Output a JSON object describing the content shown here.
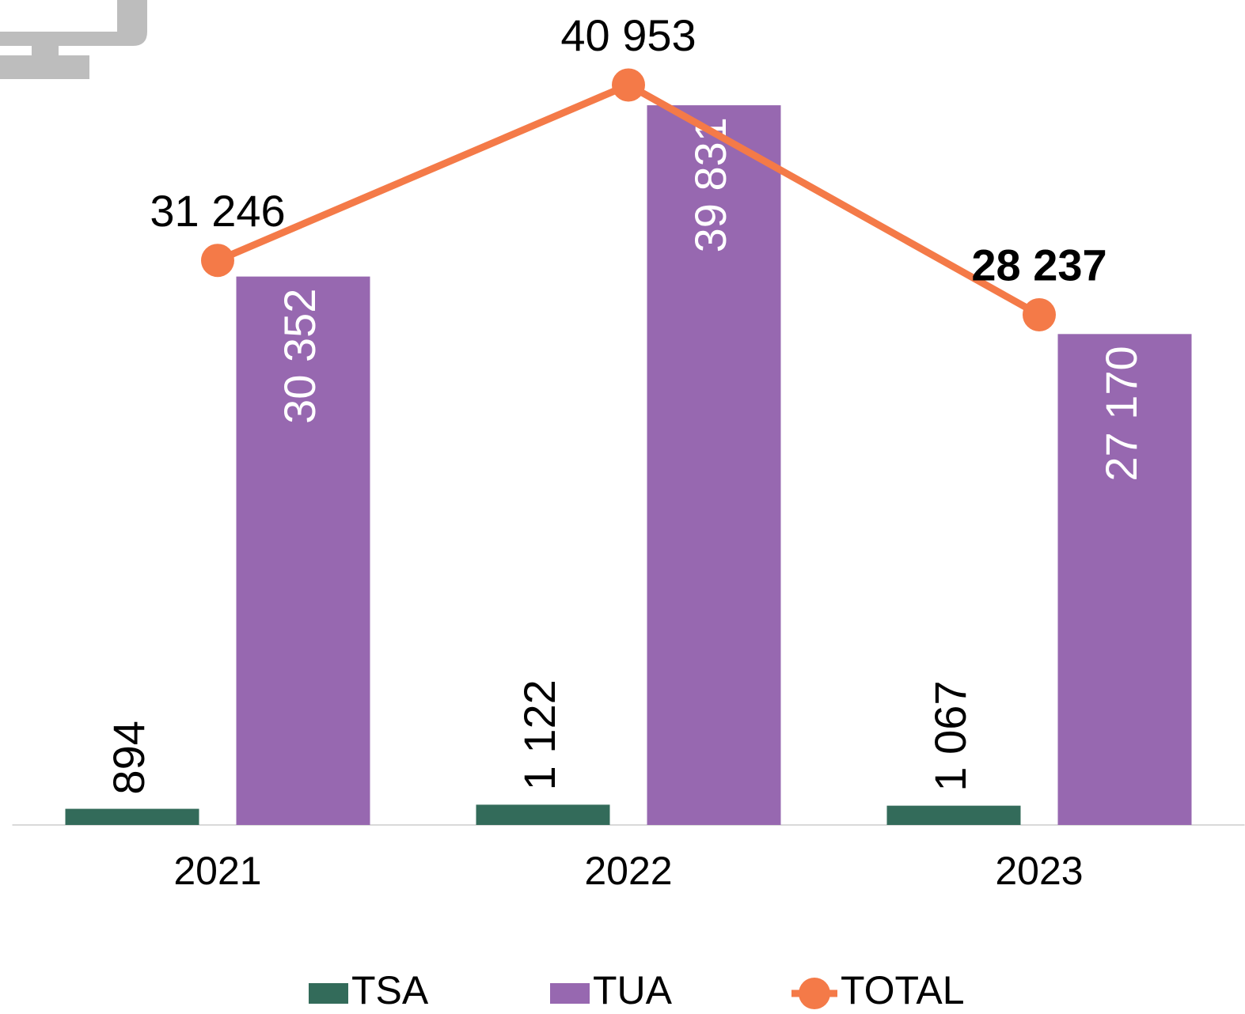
{
  "chart_data": {
    "type": "bar-line",
    "categories": [
      "2021",
      "2022",
      "2023"
    ],
    "series": [
      {
        "name": "TSA",
        "type": "bar",
        "color": "#336b5a",
        "values": [
          894,
          1122,
          1067
        ],
        "value_labels": [
          "894",
          "1 122",
          "1 067"
        ]
      },
      {
        "name": "TUA",
        "type": "bar",
        "color": "#9768b0",
        "values": [
          30352,
          39831,
          27170
        ],
        "value_labels": [
          "30 352",
          "39 831",
          "27 170"
        ]
      },
      {
        "name": "TOTAL",
        "type": "line",
        "color": "#f47a48",
        "values": [
          31246,
          40953,
          28237
        ],
        "value_labels": [
          "31 246",
          "40 953",
          "28 237"
        ]
      }
    ],
    "ylim": [
      0,
      45000
    ],
    "legend": "bottom"
  }
}
